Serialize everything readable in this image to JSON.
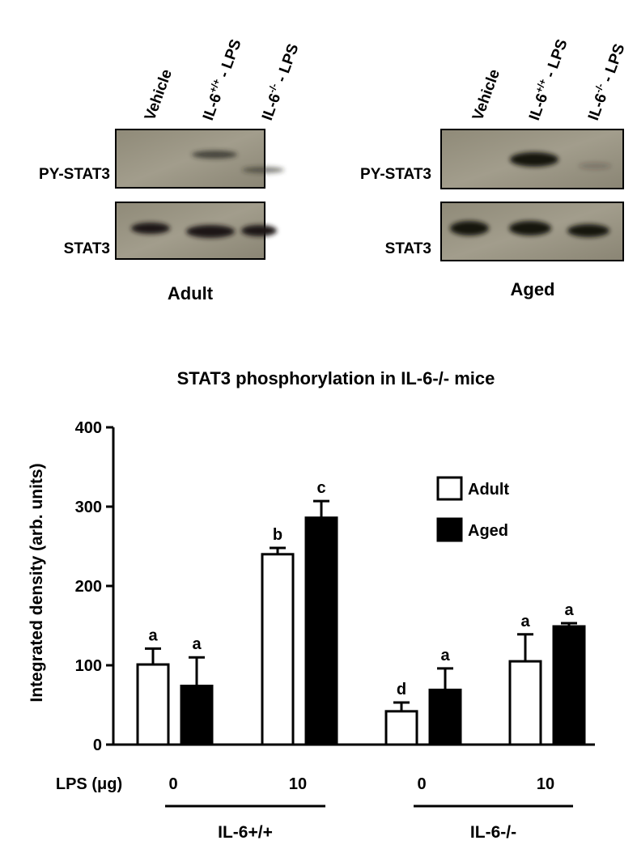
{
  "blots": [
    {
      "lanes": [
        {
          "base": "Vehicle"
        },
        {
          "base": "IL-6",
          "sup": "+/+",
          "rest": " - LPS"
        },
        {
          "base": "IL-6",
          "sup": "-/-",
          "rest": " - LPS"
        }
      ],
      "rows": [
        "PY-STAT3",
        "STAT3"
      ],
      "label": "Adult"
    },
    {
      "lanes": [
        {
          "base": "Vehicle"
        },
        {
          "base": "IL-6",
          "sup": "+/+",
          "rest": " - LPS"
        },
        {
          "base": "IL-6",
          "sup": "-/-",
          "rest": " - LPS"
        }
      ],
      "rows": [
        "PY-STAT3",
        "STAT3"
      ],
      "label": "Aged"
    }
  ],
  "chart_data": {
    "type": "bar",
    "title": "STAT3 phosphorylation in IL-6-/- mice",
    "y_label": "Integrated density (arb. units)",
    "x_label": "LPS (μg)",
    "categories": [
      "0",
      "10",
      "0",
      "10"
    ],
    "groups": [
      "IL-6+/+",
      "IL-6-/-"
    ],
    "series": [
      {
        "name": "Adult",
        "color": "#ffffff",
        "values": [
          101,
          240,
          42,
          105
        ],
        "errors": [
          20,
          8,
          11,
          34
        ],
        "letters": [
          "a",
          "b",
          "d",
          "a"
        ]
      },
      {
        "name": "Aged",
        "color": "#000000",
        "values": [
          74,
          286,
          69,
          149
        ],
        "errors": [
          36,
          21,
          27,
          4
        ],
        "letters": [
          "a",
          "c",
          "a",
          "a"
        ]
      }
    ],
    "ylim": [
      0,
      400
    ],
    "yticks": [
      0,
      100,
      200,
      300,
      400
    ]
  }
}
